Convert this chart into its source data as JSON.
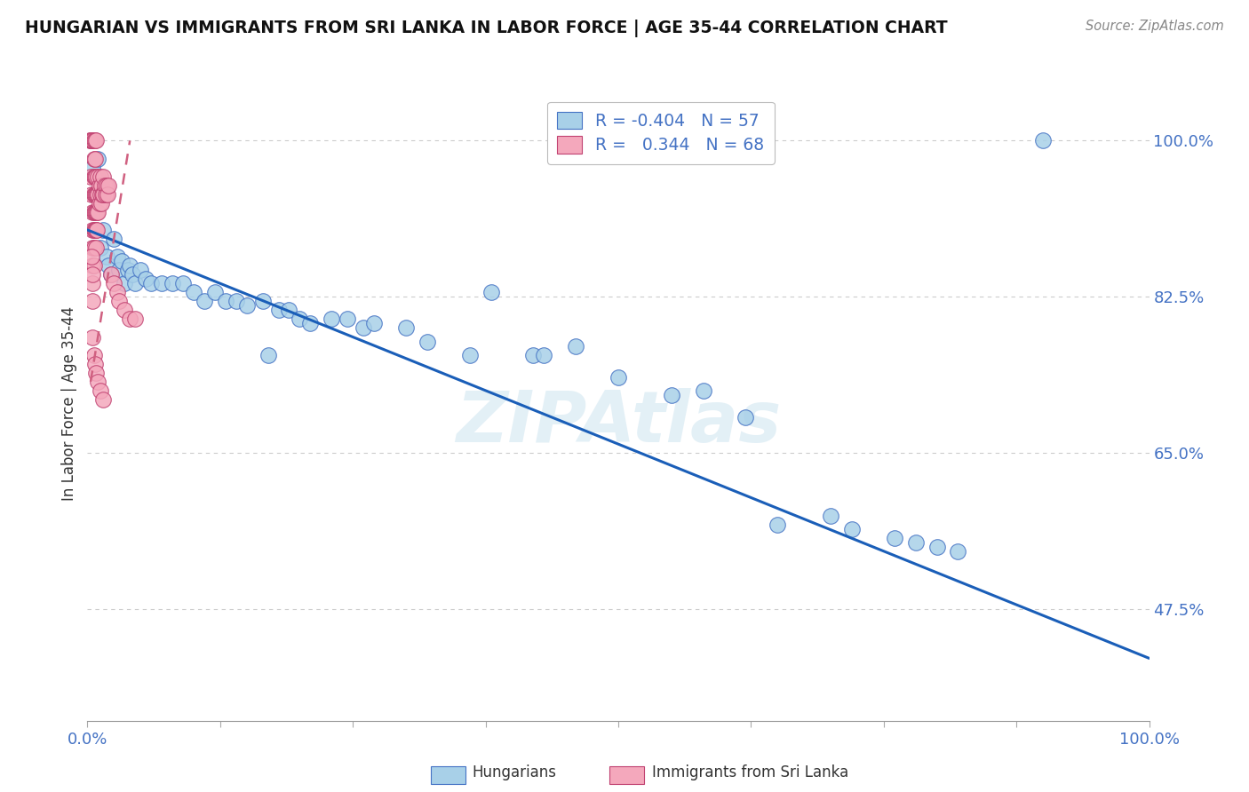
{
  "title": "HUNGARIAN VS IMMIGRANTS FROM SRI LANKA IN LABOR FORCE | AGE 35-44 CORRELATION CHART",
  "source": "Source: ZipAtlas.com",
  "ylabel": "In Labor Force | Age 35-44",
  "ytick_labels": [
    "47.5%",
    "65.0%",
    "82.5%",
    "100.0%"
  ],
  "ytick_values": [
    0.475,
    0.65,
    0.825,
    1.0
  ],
  "legend_label1": "Hungarians",
  "legend_label2": "Immigrants from Sri Lanka",
  "r_blue": "-0.404",
  "n_blue": "57",
  "r_pink": "0.344",
  "n_pink": "68",
  "color_blue_fill": "#a8d0e8",
  "color_blue_edge": "#4472c4",
  "color_blue_line": "#1a5eb8",
  "color_pink_fill": "#f4a8bc",
  "color_pink_edge": "#c04070",
  "color_pink_line": "#d06080",
  "blue_dots": [
    [
      0.005,
      0.97
    ],
    [
      0.01,
      0.98
    ],
    [
      0.012,
      0.88
    ],
    [
      0.015,
      0.9
    ],
    [
      0.018,
      0.87
    ],
    [
      0.02,
      0.86
    ],
    [
      0.022,
      0.85
    ],
    [
      0.025,
      0.89
    ],
    [
      0.028,
      0.87
    ],
    [
      0.03,
      0.855
    ],
    [
      0.032,
      0.865
    ],
    [
      0.035,
      0.84
    ],
    [
      0.038,
      0.855
    ],
    [
      0.04,
      0.86
    ],
    [
      0.042,
      0.85
    ],
    [
      0.045,
      0.84
    ],
    [
      0.05,
      0.855
    ],
    [
      0.055,
      0.845
    ],
    [
      0.06,
      0.84
    ],
    [
      0.07,
      0.84
    ],
    [
      0.08,
      0.84
    ],
    [
      0.09,
      0.84
    ],
    [
      0.1,
      0.83
    ],
    [
      0.11,
      0.82
    ],
    [
      0.12,
      0.83
    ],
    [
      0.13,
      0.82
    ],
    [
      0.14,
      0.82
    ],
    [
      0.15,
      0.815
    ],
    [
      0.165,
      0.82
    ],
    [
      0.18,
      0.81
    ],
    [
      0.19,
      0.81
    ],
    [
      0.2,
      0.8
    ],
    [
      0.21,
      0.795
    ],
    [
      0.23,
      0.8
    ],
    [
      0.245,
      0.8
    ],
    [
      0.26,
      0.79
    ],
    [
      0.27,
      0.795
    ],
    [
      0.3,
      0.79
    ],
    [
      0.32,
      0.775
    ],
    [
      0.36,
      0.76
    ],
    [
      0.38,
      0.83
    ],
    [
      0.42,
      0.76
    ],
    [
      0.43,
      0.76
    ],
    [
      0.46,
      0.77
    ],
    [
      0.5,
      0.735
    ],
    [
      0.55,
      0.715
    ],
    [
      0.58,
      0.72
    ],
    [
      0.62,
      0.69
    ],
    [
      0.65,
      0.57
    ],
    [
      0.7,
      0.58
    ],
    [
      0.72,
      0.565
    ],
    [
      0.76,
      0.555
    ],
    [
      0.78,
      0.55
    ],
    [
      0.8,
      0.545
    ],
    [
      0.82,
      0.54
    ],
    [
      0.9,
      1.0
    ],
    [
      0.17,
      0.76
    ]
  ],
  "pink_dots": [
    [
      0.002,
      1.0
    ],
    [
      0.003,
      1.0
    ],
    [
      0.004,
      1.0
    ],
    [
      0.005,
      1.0
    ],
    [
      0.006,
      1.0
    ],
    [
      0.007,
      1.0
    ],
    [
      0.008,
      1.0
    ],
    [
      0.003,
      0.96
    ],
    [
      0.004,
      0.94
    ],
    [
      0.005,
      0.92
    ],
    [
      0.005,
      0.9
    ],
    [
      0.005,
      0.88
    ],
    [
      0.005,
      0.86
    ],
    [
      0.005,
      0.84
    ],
    [
      0.005,
      0.82
    ],
    [
      0.006,
      0.98
    ],
    [
      0.006,
      0.96
    ],
    [
      0.006,
      0.94
    ],
    [
      0.006,
      0.92
    ],
    [
      0.006,
      0.9
    ],
    [
      0.006,
      0.88
    ],
    [
      0.006,
      0.86
    ],
    [
      0.007,
      0.98
    ],
    [
      0.007,
      0.96
    ],
    [
      0.007,
      0.94
    ],
    [
      0.007,
      0.92
    ],
    [
      0.007,
      0.9
    ],
    [
      0.008,
      0.96
    ],
    [
      0.008,
      0.94
    ],
    [
      0.008,
      0.92
    ],
    [
      0.008,
      0.9
    ],
    [
      0.008,
      0.88
    ],
    [
      0.009,
      0.94
    ],
    [
      0.009,
      0.92
    ],
    [
      0.009,
      0.9
    ],
    [
      0.01,
      0.96
    ],
    [
      0.01,
      0.94
    ],
    [
      0.01,
      0.92
    ],
    [
      0.011,
      0.95
    ],
    [
      0.011,
      0.93
    ],
    [
      0.012,
      0.96
    ],
    [
      0.012,
      0.94
    ],
    [
      0.013,
      0.95
    ],
    [
      0.013,
      0.93
    ],
    [
      0.014,
      0.94
    ],
    [
      0.015,
      0.96
    ],
    [
      0.015,
      0.94
    ],
    [
      0.016,
      0.95
    ],
    [
      0.017,
      0.94
    ],
    [
      0.018,
      0.95
    ],
    [
      0.019,
      0.94
    ],
    [
      0.02,
      0.95
    ],
    [
      0.022,
      0.85
    ],
    [
      0.025,
      0.84
    ],
    [
      0.028,
      0.83
    ],
    [
      0.03,
      0.82
    ],
    [
      0.035,
      0.81
    ],
    [
      0.04,
      0.8
    ],
    [
      0.045,
      0.8
    ],
    [
      0.005,
      0.78
    ],
    [
      0.006,
      0.76
    ],
    [
      0.007,
      0.75
    ],
    [
      0.008,
      0.74
    ],
    [
      0.01,
      0.73
    ],
    [
      0.012,
      0.72
    ],
    [
      0.015,
      0.71
    ],
    [
      0.004,
      0.87
    ],
    [
      0.005,
      0.85
    ]
  ],
  "blue_line_x0": 0.0,
  "blue_line_y0": 0.9,
  "blue_line_x1": 1.0,
  "blue_line_y1": 0.42,
  "pink_line_x0": 0.003,
  "pink_line_y0": 0.73,
  "pink_line_x1": 0.04,
  "pink_line_y1": 1.0,
  "xlim": [
    0.0,
    1.0
  ],
  "ylim": [
    0.35,
    1.06
  ],
  "watermark_text": "ZIPAtlas",
  "background_color": "#ffffff",
  "grid_color": "#cccccc",
  "axis_label_color": "#4472c4"
}
